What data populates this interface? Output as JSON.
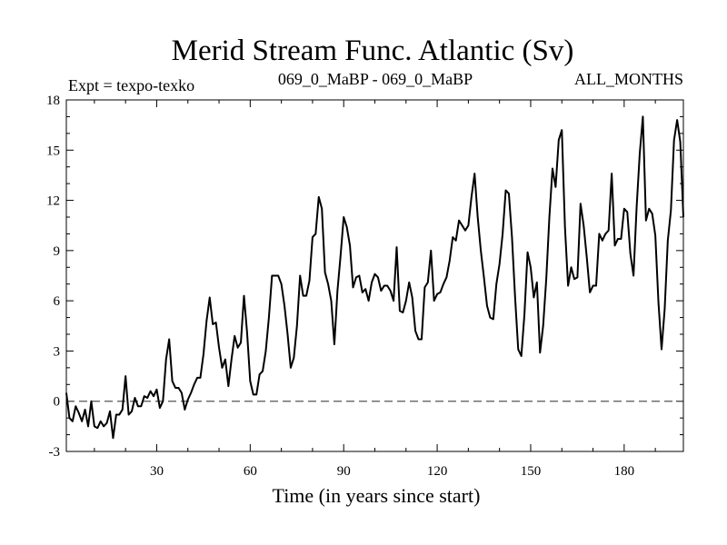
{
  "chart_data": {
    "type": "line",
    "title": "Merid Stream Func. Atlantic (Sv)",
    "subtitle_left": "Expt = texpo-texko",
    "subtitle_center": "069_0_MaBP - 069_0_MaBP",
    "subtitle_right": "ALL_MONTHS",
    "xlabel": "Time (in years since start)",
    "ylabel": "",
    "xlim": [
      1,
      199
    ],
    "ylim": [
      -3,
      18
    ],
    "xticks": [
      30,
      60,
      90,
      120,
      150,
      180
    ],
    "yticks": [
      -3,
      0,
      3,
      6,
      9,
      12,
      15,
      18
    ],
    "reference_line": {
      "y": 0,
      "style": "dashed"
    },
    "grid": false,
    "series": [
      {
        "name": "Merid Stream Func. Atlantic",
        "x": [
          1,
          2,
          3,
          4,
          5,
          6,
          7,
          8,
          9,
          10,
          11,
          12,
          13,
          14,
          15,
          16,
          17,
          18,
          19,
          20,
          21,
          22,
          23,
          24,
          25,
          26,
          27,
          28,
          29,
          30,
          31,
          32,
          33,
          34,
          35,
          36,
          37,
          38,
          39,
          40,
          41,
          42,
          43,
          44,
          45,
          46,
          47,
          48,
          49,
          50,
          51,
          52,
          53,
          54,
          55,
          56,
          57,
          58,
          59,
          60,
          61,
          62,
          63,
          64,
          65,
          66,
          67,
          68,
          69,
          70,
          71,
          72,
          73,
          74,
          75,
          76,
          77,
          78,
          79,
          80,
          81,
          82,
          83,
          84,
          85,
          86,
          87,
          88,
          89,
          90,
          91,
          92,
          93,
          94,
          95,
          96,
          97,
          98,
          99,
          100,
          101,
          102,
          103,
          104,
          105,
          106,
          107,
          108,
          109,
          110,
          111,
          112,
          113,
          114,
          115,
          116,
          117,
          118,
          119,
          120,
          121,
          122,
          123,
          124,
          125,
          126,
          127,
          128,
          129,
          130,
          131,
          132,
          133,
          134,
          135,
          136,
          137,
          138,
          139,
          140,
          141,
          142,
          143,
          144,
          145,
          146,
          147,
          148,
          149,
          150,
          151,
          152,
          153,
          154,
          155,
          156,
          157,
          158,
          159,
          160,
          161,
          162,
          163,
          164,
          165,
          166,
          167,
          168,
          169,
          170,
          171,
          172,
          173,
          174,
          175,
          176,
          177,
          178,
          179,
          180,
          181,
          182,
          183,
          184,
          185,
          186,
          187,
          188,
          189,
          190,
          191,
          192,
          193,
          194,
          195,
          196,
          197,
          198,
          199
        ],
        "values": [
          0.5,
          -1.0,
          -1.2,
          -0.3,
          -0.7,
          -1.2,
          -0.5,
          -1.5,
          0.0,
          -1.5,
          -1.6,
          -1.2,
          -1.5,
          -1.3,
          -0.6,
          -2.2,
          -0.8,
          -0.8,
          -0.5,
          1.5,
          -0.8,
          -0.6,
          0.2,
          -0.3,
          -0.3,
          0.3,
          0.2,
          0.6,
          0.3,
          0.7,
          -0.4,
          0.0,
          2.5,
          3.7,
          1.2,
          0.8,
          0.8,
          0.5,
          -0.5,
          0.1,
          0.5,
          1.0,
          1.4,
          1.4,
          2.8,
          4.8,
          6.2,
          4.6,
          4.7,
          3.2,
          2.0,
          2.5,
          0.9,
          2.5,
          3.9,
          3.2,
          3.5,
          6.3,
          4.1,
          1.2,
          0.4,
          0.4,
          1.6,
          1.8,
          3.0,
          5.0,
          7.5,
          7.5,
          7.5,
          7.0,
          5.7,
          4.0,
          2.0,
          2.6,
          4.5,
          7.5,
          6.3,
          6.3,
          7.2,
          9.8,
          10.0,
          12.2,
          11.5,
          7.7,
          7.0,
          6.0,
          3.4,
          6.6,
          8.7,
          11.0,
          10.4,
          9.3,
          6.8,
          7.4,
          7.5,
          6.5,
          6.7,
          6.0,
          7.1,
          7.6,
          7.4,
          6.6,
          6.9,
          6.9,
          6.6,
          6.0,
          9.2,
          5.4,
          5.3,
          6.0,
          7.1,
          6.2,
          4.2,
          3.7,
          3.7,
          6.8,
          7.1,
          9.0,
          6.0,
          6.4,
          6.5,
          7.0,
          7.4,
          8.4,
          9.8,
          9.6,
          10.8,
          10.5,
          10.2,
          10.5,
          12.2,
          13.6,
          11.0,
          9.0,
          7.4,
          5.7,
          5.0,
          4.9,
          7.0,
          8.2,
          10.0,
          12.6,
          12.4,
          9.8,
          6.2,
          3.1,
          2.7,
          5.2,
          8.9,
          8.0,
          6.2,
          7.1,
          2.9,
          4.5,
          7.3,
          11.0,
          13.9,
          12.8,
          15.6,
          16.2,
          10.4,
          6.9,
          8.0,
          7.3,
          7.4,
          11.8,
          10.5,
          8.6,
          6.5,
          6.9,
          6.9,
          10.0,
          9.6,
          10.0,
          10.2,
          13.6,
          9.3,
          9.7,
          9.7,
          11.5,
          11.3,
          8.8,
          7.5,
          11.6,
          14.8,
          17.0,
          10.8,
          11.5,
          11.2,
          9.9,
          5.9,
          3.1,
          5.5,
          9.6,
          11.4,
          15.6,
          16.8,
          15.5,
          11.0
        ]
      }
    ]
  }
}
